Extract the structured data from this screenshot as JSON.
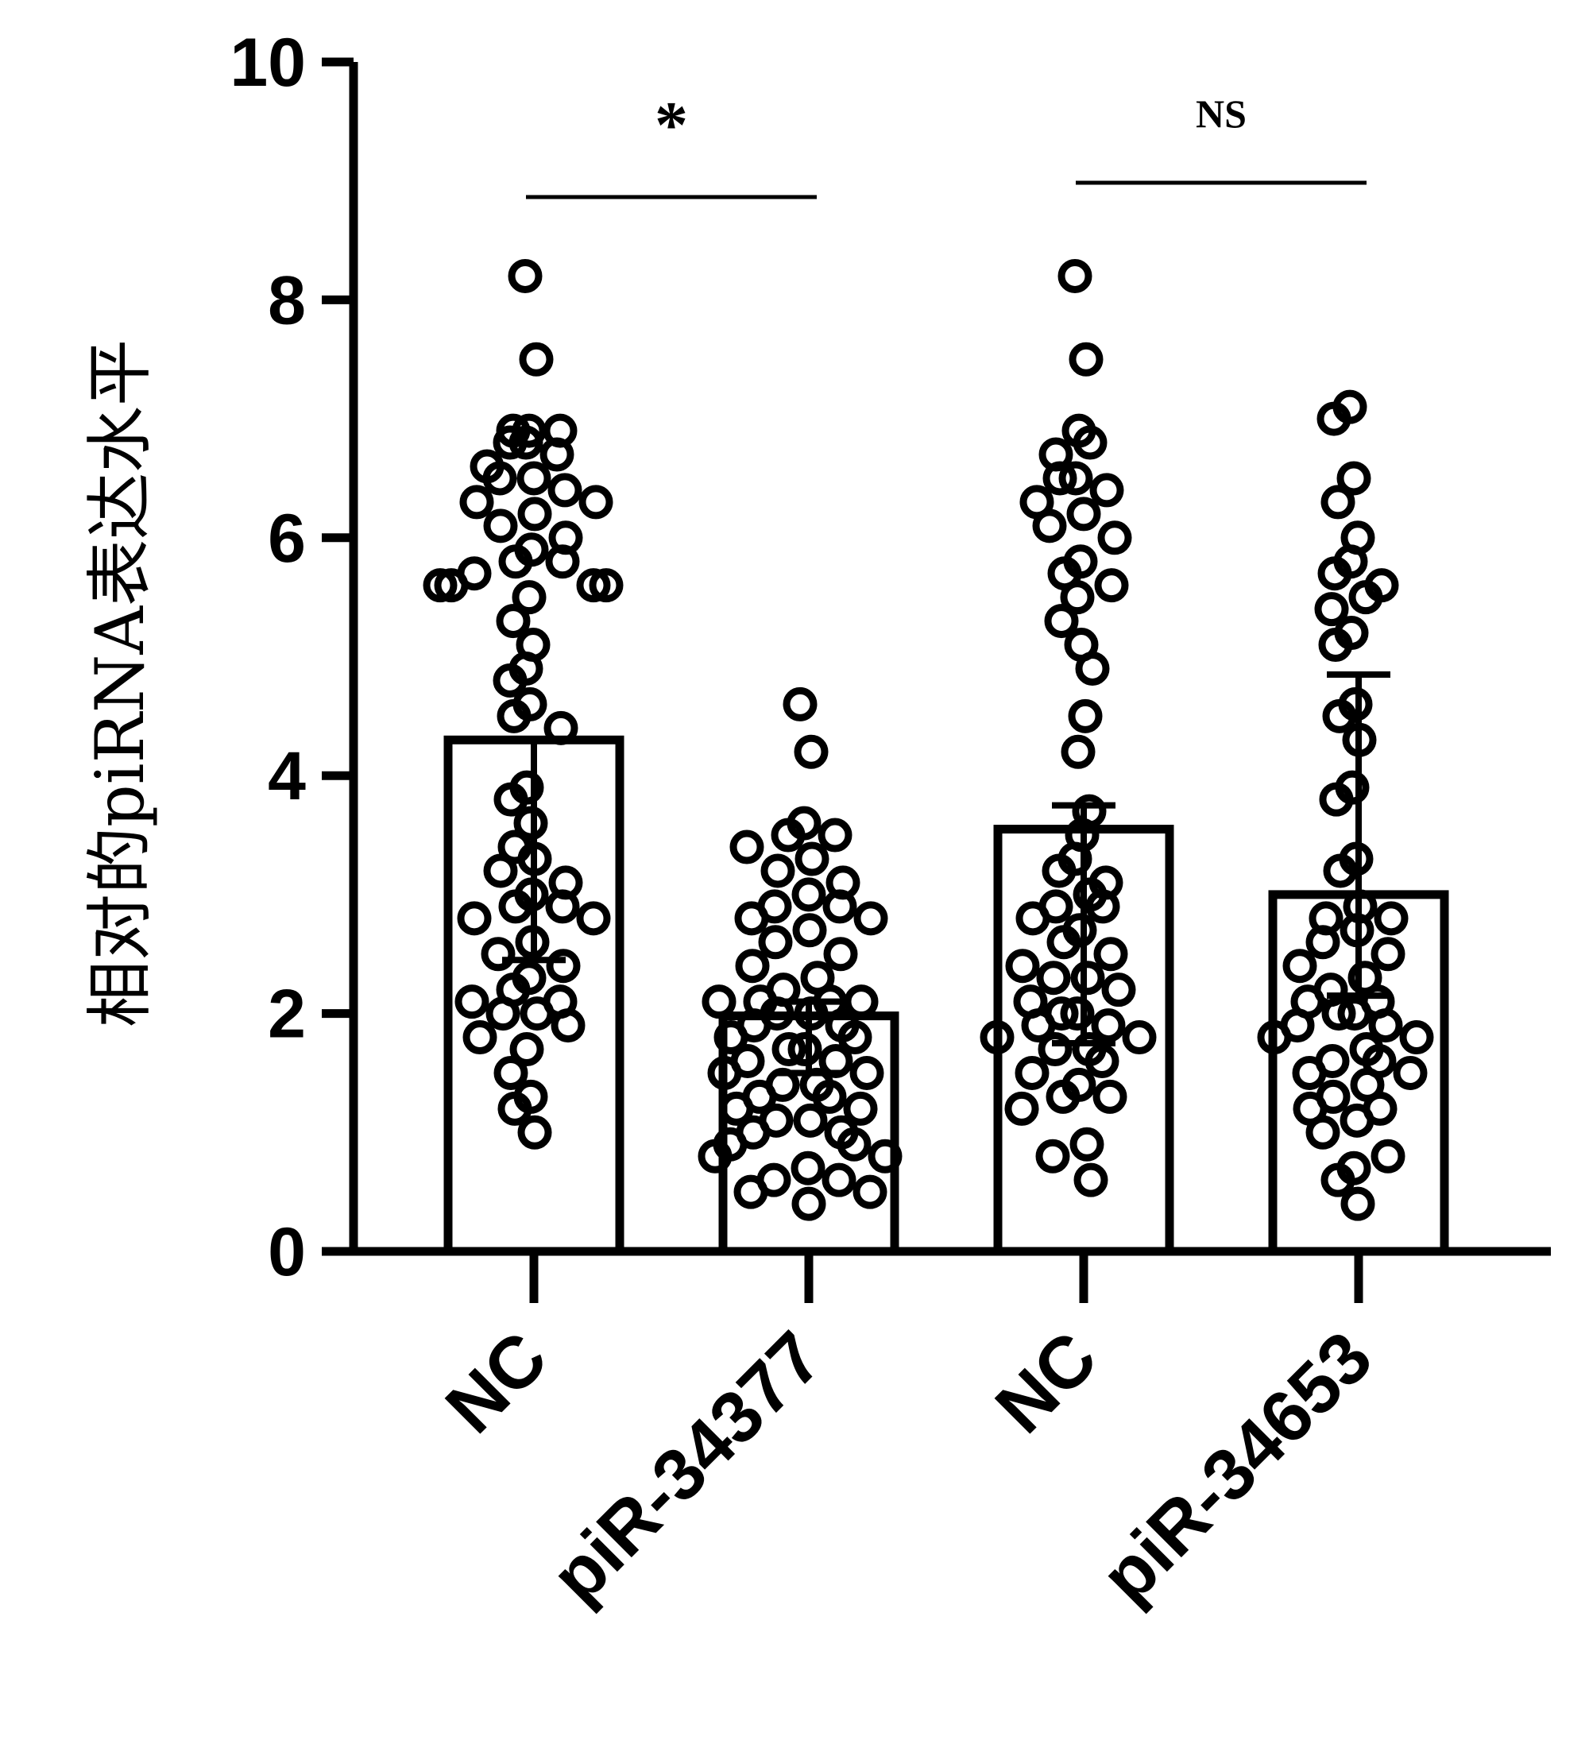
{
  "chart_data": {
    "type": "bar",
    "ylabel": "相对的piRNA表达水平",
    "xlabel": "",
    "ylim": [
      0,
      10
    ],
    "yticks": [
      "0",
      "2",
      "4",
      "6",
      "8",
      "10"
    ],
    "categories": [
      "NC",
      "piR-34377",
      "NC",
      "piR-34653"
    ],
    "values": [
      4.3,
      1.98,
      3.55,
      3.0
    ],
    "error_low": [
      2.45,
      1.5,
      1.75,
      2.15
    ],
    "error_high": [
      4.3,
      2.1,
      3.75,
      4.85
    ],
    "points": [
      [
        8.2,
        7.5,
        6.9,
        6.9,
        6.9,
        6.8,
        6.8,
        6.7,
        6.6,
        6.5,
        6.5,
        6.4,
        6.3,
        6.3,
        6.2,
        6.1,
        6.0,
        5.9,
        5.8,
        5.8,
        5.7,
        5.6,
        5.6,
        5.6,
        5.6,
        5.5,
        5.3,
        5.1,
        4.9,
        4.8,
        4.6,
        4.5,
        4.4,
        3.9,
        3.8,
        3.6,
        3.4,
        3.3,
        3.2,
        3.1,
        3.0,
        2.9,
        2.9,
        2.8,
        2.8,
        2.6,
        2.5,
        2.4,
        2.3,
        2.2,
        2.1,
        2.1,
        2.0,
        2.0,
        1.9,
        1.8,
        1.7,
        1.5,
        1.3,
        1.2,
        1.0
      ],
      [
        4.6,
        4.2,
        3.6,
        3.5,
        3.5,
        3.4,
        3.3,
        3.2,
        3.1,
        3.0,
        2.9,
        2.9,
        2.8,
        2.8,
        2.7,
        2.6,
        2.5,
        2.4,
        2.3,
        2.2,
        2.1,
        2.1,
        2.1,
        2.1,
        2.0,
        2.0,
        1.9,
        1.9,
        1.8,
        1.8,
        1.7,
        1.7,
        1.6,
        1.6,
        1.5,
        1.5,
        1.4,
        1.4,
        1.3,
        1.3,
        1.2,
        1.2,
        1.1,
        1.1,
        1.0,
        1.0,
        0.9,
        0.9,
        0.8,
        0.8,
        0.7,
        0.6,
        0.6,
        0.5,
        0.5,
        0.4
      ],
      [
        8.2,
        7.5,
        6.9,
        6.8,
        6.7,
        6.5,
        6.5,
        6.4,
        6.3,
        6.2,
        6.1,
        6.0,
        5.8,
        5.7,
        5.6,
        5.5,
        5.3,
        5.1,
        4.9,
        4.5,
        4.2,
        3.7,
        3.5,
        3.3,
        3.2,
        3.1,
        3.0,
        2.9,
        2.9,
        2.8,
        2.7,
        2.6,
        2.5,
        2.4,
        2.3,
        2.3,
        2.2,
        2.1,
        2.0,
        2.0,
        1.9,
        1.9,
        1.8,
        1.8,
        1.7,
        1.7,
        1.6,
        1.5,
        1.4,
        1.3,
        1.3,
        1.2,
        0.9,
        0.8,
        0.6
      ],
      [
        7.1,
        7.0,
        6.5,
        6.3,
        6.0,
        5.8,
        5.7,
        5.6,
        5.5,
        5.4,
        5.2,
        5.1,
        4.6,
        4.5,
        4.3,
        3.9,
        3.8,
        3.3,
        3.2,
        2.9,
        2.8,
        2.8,
        2.7,
        2.6,
        2.5,
        2.4,
        2.3,
        2.2,
        2.1,
        2.1,
        2.0,
        2.0,
        1.9,
        1.9,
        1.8,
        1.8,
        1.7,
        1.6,
        1.6,
        1.5,
        1.5,
        1.4,
        1.3,
        1.2,
        1.2,
        1.1,
        1.0,
        0.8,
        0.7,
        0.6,
        0.4
      ]
    ],
    "comparisons": [
      {
        "groups": [
          0,
          1
        ],
        "label": "*"
      },
      {
        "groups": [
          2,
          3
        ],
        "label": "NS"
      }
    ],
    "grid": false,
    "legend": "none"
  }
}
